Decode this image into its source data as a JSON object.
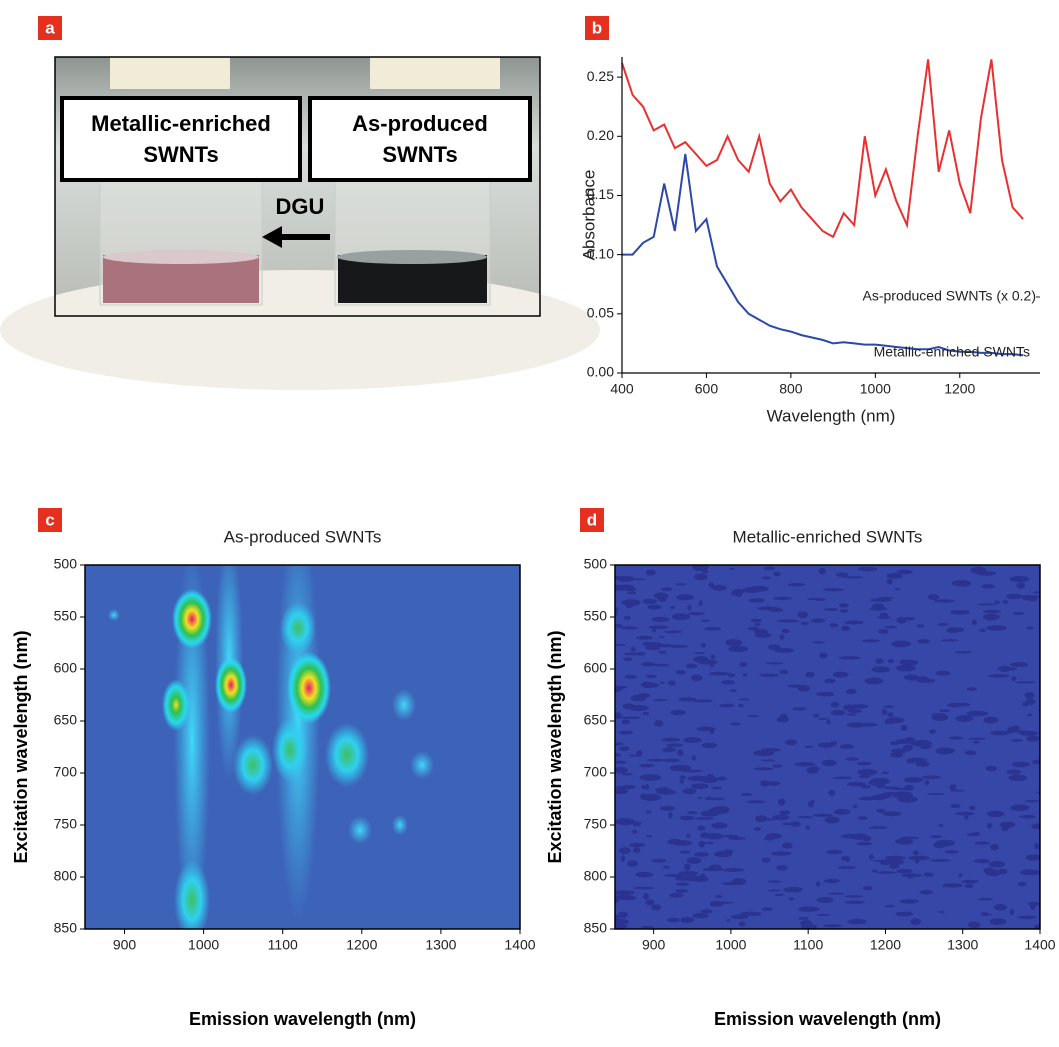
{
  "photo": {
    "panel_label": "a",
    "left_label_lines": [
      "Metallic-enriched",
      "SWNTs"
    ],
    "right_label_lines": [
      "As-produced",
      "SWNTs"
    ],
    "arrow_label": "DGU"
  },
  "chart_data": [
    {
      "type": "line",
      "panel_label": "b",
      "xlabel": "Wavelength (nm)",
      "ylabel": "Absorbance",
      "x": [
        400,
        425,
        450,
        475,
        500,
        525,
        550,
        575,
        600,
        625,
        650,
        675,
        700,
        725,
        750,
        775,
        800,
        825,
        850,
        875,
        900,
        925,
        950,
        975,
        1000,
        1025,
        1050,
        1075,
        1100,
        1125,
        1150,
        1175,
        1200,
        1225,
        1250,
        1275,
        1300,
        1325,
        1350
      ],
      "series": [
        {
          "name": "As-produced SWNTs (x 0.2)",
          "color": "#e8302f",
          "values": [
            0.262,
            0.235,
            0.225,
            0.205,
            0.21,
            0.19,
            0.195,
            0.185,
            0.175,
            0.18,
            0.2,
            0.18,
            0.17,
            0.2,
            0.16,
            0.145,
            0.155,
            0.14,
            0.13,
            0.12,
            0.115,
            0.135,
            0.125,
            0.2,
            0.15,
            0.172,
            0.145,
            0.125,
            0.2,
            0.265,
            0.17,
            0.205,
            0.16,
            0.135,
            0.215,
            0.265,
            0.18,
            0.14,
            0.13
          ]
        },
        {
          "name": "Metallic-enriched SWNTs",
          "color": "#2c48a8",
          "values": [
            0.1,
            0.1,
            0.11,
            0.115,
            0.16,
            0.12,
            0.185,
            0.12,
            0.13,
            0.09,
            0.075,
            0.06,
            0.05,
            0.045,
            0.04,
            0.037,
            0.035,
            0.032,
            0.03,
            0.028,
            0.025,
            0.026,
            0.025,
            0.024,
            0.024,
            0.023,
            0.022,
            0.021,
            0.02,
            0.02,
            0.022,
            0.019,
            0.018,
            0.018,
            0.017,
            0.017,
            0.016,
            0.016,
            0.015
          ]
        }
      ],
      "xlim": [
        400,
        1390
      ],
      "ylim": [
        0,
        0.267
      ],
      "xticks": [
        400,
        600,
        800,
        1000,
        1200
      ],
      "yticks": [
        {
          "value": 0,
          "label": "0.00"
        },
        0.05,
        {
          "value": 0.1,
          "label": "0.10"
        },
        0.15,
        {
          "value": 0.2,
          "label": "0.20"
        },
        0.25
      ],
      "y_inverted": false,
      "frame": false
    },
    {
      "type": "heatmap",
      "panel_label": "c",
      "title": "As-produced SWNTs",
      "xlabel": "Emission wavelength (nm)",
      "ylabel": "Excitation wavelength (nm)",
      "xlim": [
        850,
        1400
      ],
      "ylim": [
        500,
        850
      ],
      "xticks": [
        900,
        1000,
        1100,
        1200,
        1300,
        1400
      ],
      "yticks": [
        500,
        550,
        600,
        650,
        700,
        750,
        800,
        850
      ],
      "y_inverted": true,
      "frame": true
    },
    {
      "type": "heatmap",
      "panel_label": "d",
      "title": "Metallic-enriched SWNTs",
      "xlabel": "Emission wavelength (nm)",
      "ylabel": "Excitation wavelength (nm)",
      "xlim": [
        850,
        1400
      ],
      "ylim": [
        500,
        850
      ],
      "xticks": [
        900,
        1000,
        1100,
        1200,
        1300,
        1400
      ],
      "yticks": [
        500,
        550,
        600,
        650,
        700,
        750,
        800,
        850
      ],
      "y_inverted": true,
      "frame": true
    }
  ]
}
